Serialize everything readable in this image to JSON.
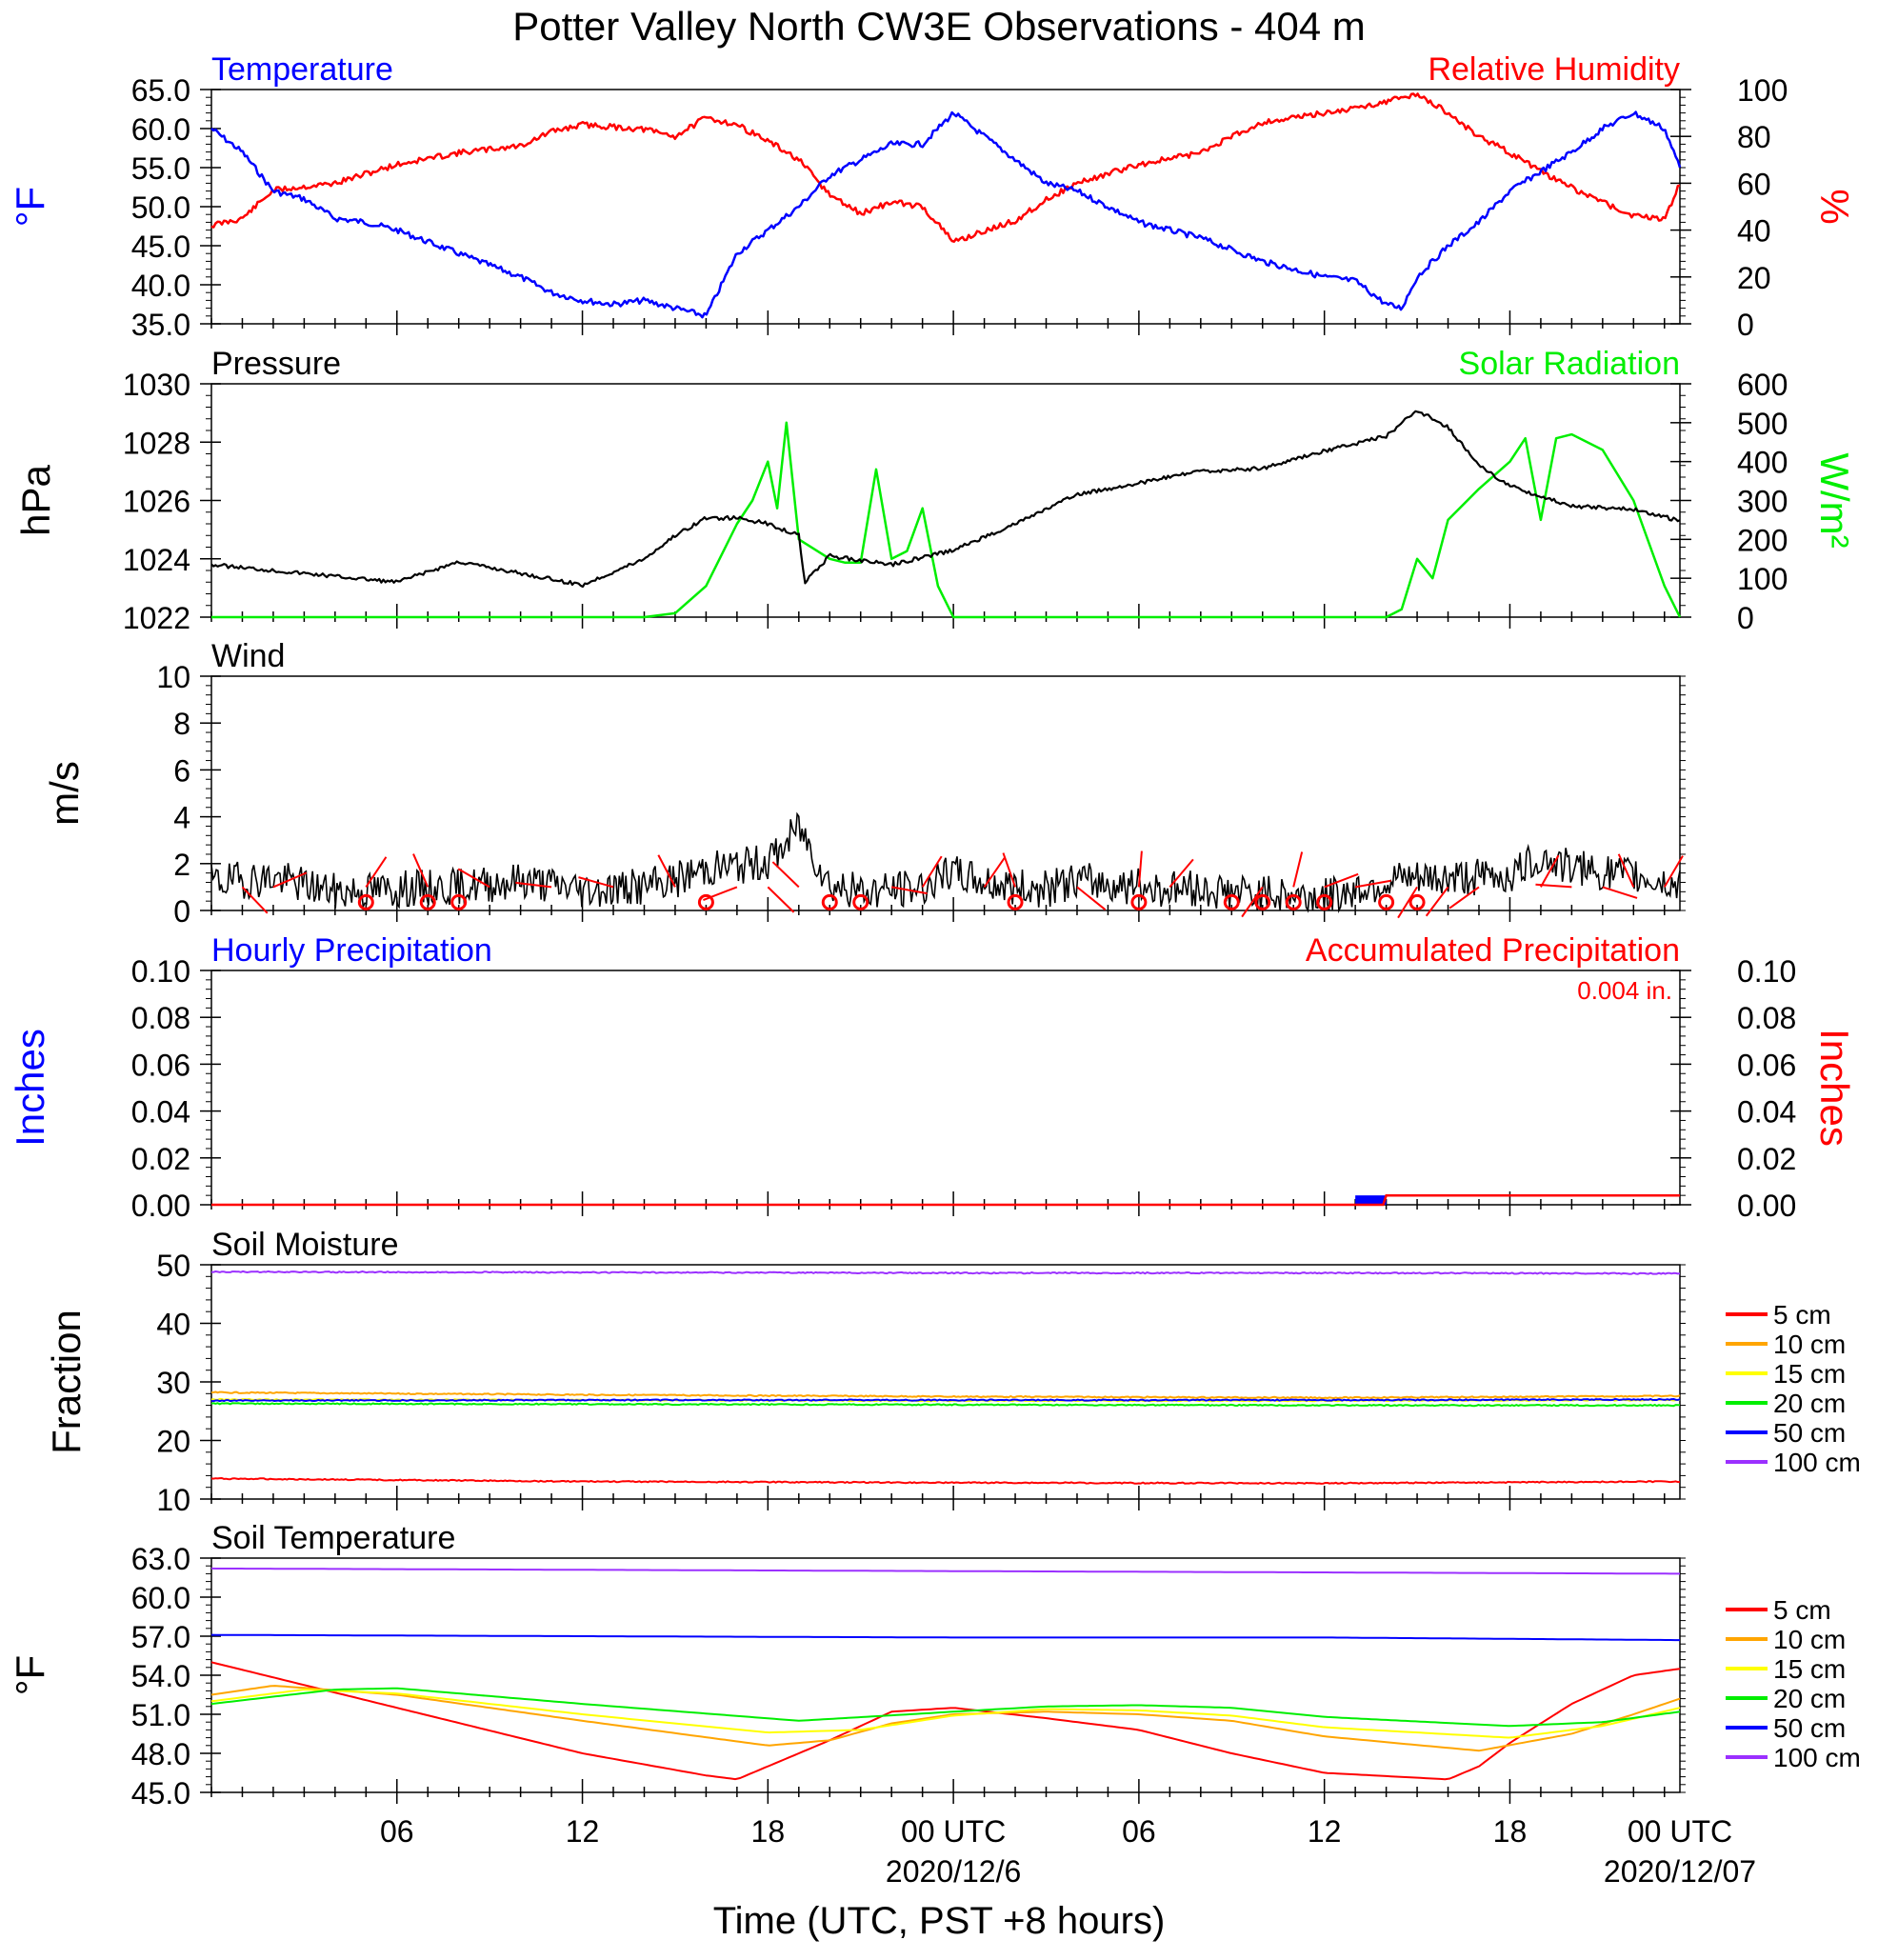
{
  "title": "Potter Valley North CW3E Observations - 404 m",
  "x_axis": {
    "title": "Time (UTC, PST +8 hours)",
    "tick_labels": [
      "06",
      "12",
      "18",
      "00 UTC",
      "06",
      "12",
      "18",
      "00 UTC"
    ],
    "date_labels": [
      "2020/12/6",
      "2020/12/07"
    ]
  },
  "chart_data": [
    {
      "type": "line",
      "panel": "temperature-humidity",
      "left_title": "Temperature",
      "right_title": "Relative Humidity",
      "left_axis_label": "°F",
      "right_axis_label": "%",
      "ylim_left": [
        35,
        65
      ],
      "ylim_right": [
        0,
        100
      ],
      "yticks_left": [
        "35.0",
        "40.0",
        "45.0",
        "50.0",
        "55.0",
        "60.0",
        "65.0"
      ],
      "yticks_right": [
        "0",
        "20",
        "40",
        "60",
        "80",
        "100"
      ],
      "series": [
        {
          "name": "Temperature",
          "axis": "left",
          "color": "#0000ff",
          "x": [
            0,
            1,
            2,
            3,
            4,
            5,
            6,
            8,
            10,
            11,
            12,
            13,
            14,
            15,
            16,
            16.5,
            17,
            18,
            19,
            20,
            21,
            22,
            23,
            24,
            25,
            26,
            27,
            28,
            30,
            32,
            34,
            36,
            37,
            38,
            38.5,
            39,
            40,
            41,
            42,
            44,
            45,
            46,
            47,
            47.5
          ],
          "values": [
            60,
            57,
            52,
            51,
            48.5,
            48,
            47,
            44,
            41,
            39,
            38,
            37.5,
            38,
            37,
            36,
            40,
            44,
            47,
            50,
            54,
            56,
            58,
            58,
            62,
            59,
            56,
            53,
            52,
            48,
            46,
            43,
            41,
            40.5,
            37.5,
            37,
            41,
            45,
            48,
            52,
            57,
            60,
            62,
            60,
            55
          ]
        },
        {
          "name": "Relative Humidity",
          "axis": "right",
          "color": "#ff0000",
          "x": [
            0,
            1,
            2,
            4,
            6,
            8,
            10,
            11,
            12,
            14,
            15,
            16,
            17,
            18,
            19,
            20,
            21,
            22,
            23,
            24,
            26,
            27,
            28,
            30,
            32,
            33,
            34,
            36,
            37,
            38,
            39,
            40,
            41,
            42,
            43,
            44,
            45,
            46,
            47,
            47.5
          ],
          "values": [
            42,
            45,
            57,
            60,
            68,
            73,
            76,
            82,
            85,
            83,
            80,
            88,
            85,
            78,
            70,
            55,
            47,
            52,
            50,
            35,
            44,
            53,
            60,
            68,
            73,
            80,
            86,
            90,
            92,
            95,
            98,
            90,
            80,
            73,
            65,
            58,
            52,
            46,
            45,
            60
          ]
        }
      ]
    },
    {
      "type": "line",
      "panel": "pressure-solar",
      "left_title": "Pressure",
      "right_title": "Solar Radiation",
      "left_axis_label": "hPa",
      "right_axis_label": "W/m²",
      "ylim_left": [
        1022,
        1030
      ],
      "ylim_right": [
        0,
        600
      ],
      "yticks_left": [
        "1022",
        "1024",
        "1026",
        "1028",
        "1030"
      ],
      "yticks_right": [
        "0",
        "100",
        "200",
        "300",
        "400",
        "500",
        "600"
      ],
      "series": [
        {
          "name": "Pressure",
          "axis": "left",
          "color": "#000000",
          "x": [
            0,
            2,
            4,
            6,
            8,
            10,
            12,
            14,
            15,
            16,
            17,
            18,
            19,
            19.2,
            20,
            22,
            24,
            26,
            28,
            30,
            32,
            34,
            36,
            38,
            39,
            40,
            41,
            42,
            44,
            46,
            47.5
          ],
          "values": [
            1023.8,
            1023.6,
            1023.4,
            1023.2,
            1023.9,
            1023.5,
            1023.1,
            1024,
            1024.8,
            1025.4,
            1025.4,
            1025.2,
            1024.8,
            1023.2,
            1024.1,
            1023.8,
            1024.3,
            1025.2,
            1026.2,
            1026.6,
            1027,
            1027.1,
            1027.7,
            1028.2,
            1029.1,
            1028.5,
            1027.2,
            1026.5,
            1025.8,
            1025.7,
            1025.3
          ]
        },
        {
          "name": "Solar Radiation",
          "axis": "right",
          "color": "#00ee00",
          "x": [
            0,
            14,
            15,
            16,
            17,
            17.5,
            18,
            18.3,
            18.6,
            19,
            20,
            20.5,
            21,
            21.5,
            22,
            22.5,
            23,
            23.5,
            24,
            38,
            38.5,
            39,
            39.5,
            40,
            41,
            42,
            42.5,
            43,
            43.5,
            44,
            45,
            46,
            47,
            47.5
          ],
          "values": [
            0,
            0,
            10,
            80,
            240,
            300,
            400,
            280,
            500,
            200,
            150,
            140,
            140,
            380,
            150,
            170,
            280,
            80,
            0,
            0,
            20,
            150,
            100,
            250,
            330,
            400,
            460,
            250,
            460,
            470,
            430,
            300,
            80,
            0
          ]
        }
      ]
    },
    {
      "type": "line",
      "panel": "wind",
      "left_title": "Wind",
      "left_axis_label": "m/s",
      "ylim": [
        0,
        10
      ],
      "yticks": [
        "0",
        "2",
        "4",
        "6",
        "8",
        "10"
      ],
      "series": [
        {
          "name": "Wind",
          "color": "#000000",
          "x": [
            0,
            2,
            4,
            6,
            8,
            10,
            12,
            14,
            15,
            16,
            17,
            18,
            18.5,
            19,
            20,
            21,
            22,
            23,
            24,
            25,
            26,
            27,
            28,
            30,
            32,
            34,
            36,
            37,
            38,
            40,
            42,
            43,
            44,
            46,
            47,
            47.5
          ],
          "values": [
            1.2,
            1.4,
            0.8,
            0.9,
            1.0,
            1.3,
            0.9,
            1.0,
            1.3,
            1.8,
            1.9,
            2.1,
            2.7,
            3.6,
            1.1,
            0.8,
            0.9,
            1.0,
            1.6,
            1.2,
            1.0,
            0.9,
            1.3,
            1.0,
            0.9,
            0.7,
            0.6,
            0.9,
            1.2,
            1.4,
            1.5,
            2.3,
            1.8,
            1.5,
            1.2,
            1.0
          ]
        }
      ],
      "calm_marker_hours": [
        5,
        7,
        8,
        16,
        20,
        21,
        26,
        30,
        33,
        34,
        35,
        36,
        38,
        39
      ],
      "barb_hours": [
        1,
        2,
        5,
        7,
        9,
        11,
        13,
        15,
        17,
        18,
        19,
        22,
        23,
        25,
        26,
        28,
        30,
        31,
        34,
        35,
        36,
        37,
        39,
        40,
        41,
        43,
        44,
        45,
        46,
        47
      ]
    },
    {
      "type": "bar",
      "panel": "precipitation",
      "left_title": "Hourly Precipitation",
      "right_title": "Accumulated Precipitation",
      "accumulated_total_label": "0.004 in.",
      "left_axis_label": "Inches",
      "right_axis_label": "Inches",
      "ylim": [
        0,
        0.1
      ],
      "yticks": [
        "0.00",
        "0.02",
        "0.04",
        "0.06",
        "0.08",
        "0.10"
      ],
      "series": [
        {
          "name": "Hourly Precipitation",
          "color": "#0000ff",
          "x": [
            37
          ],
          "values": [
            0.004
          ]
        },
        {
          "name": "Accumulated Precipitation",
          "color": "#ff0000",
          "x": [
            0,
            37.9,
            38,
            47.5
          ],
          "values": [
            0,
            0,
            0.004,
            0.004
          ]
        }
      ]
    },
    {
      "type": "line",
      "panel": "soil-moisture",
      "left_title": "Soil Moisture",
      "left_axis_label": "Fraction",
      "ylim": [
        10,
        50
      ],
      "yticks": [
        "10",
        "20",
        "30",
        "40",
        "50"
      ],
      "series": [
        {
          "name": "5 cm",
          "color": "#ff0000",
          "x": [
            0,
            12,
            24,
            36,
            47.5
          ],
          "values": [
            13.5,
            13.0,
            12.8,
            12.7,
            13.0
          ]
        },
        {
          "name": "10 cm",
          "color": "#ffa500",
          "x": [
            0,
            12,
            24,
            36,
            47.5
          ],
          "values": [
            28.2,
            27.8,
            27.5,
            27.3,
            27.6
          ]
        },
        {
          "name": "15 cm",
          "color": "#ffff00",
          "x": [
            0,
            12,
            24,
            36,
            47.5
          ],
          "values": [
            27.0,
            26.9,
            26.8,
            26.8,
            26.9
          ]
        },
        {
          "name": "20 cm",
          "color": "#00ee00",
          "x": [
            0,
            12,
            24,
            36,
            47.5
          ],
          "values": [
            26.3,
            26.2,
            26.1,
            26.0,
            26.0
          ]
        },
        {
          "name": "50 cm",
          "color": "#0000ff",
          "x": [
            0,
            12,
            24,
            36,
            47.5
          ],
          "values": [
            26.8,
            26.9,
            26.9,
            26.9,
            27.0
          ]
        },
        {
          "name": "100 cm",
          "color": "#9b30ff",
          "x": [
            0,
            12,
            24,
            36,
            47.5
          ],
          "values": [
            48.8,
            48.7,
            48.6,
            48.6,
            48.5
          ]
        }
      ]
    },
    {
      "type": "line",
      "panel": "soil-temperature",
      "left_title": "Soil Temperature",
      "left_axis_label": "°F",
      "ylim": [
        45,
        63
      ],
      "yticks": [
        "45.0",
        "48.0",
        "51.0",
        "54.0",
        "57.0",
        "60.0",
        "63.0"
      ],
      "series": [
        {
          "name": "5 cm",
          "color": "#ff0000",
          "x": [
            0,
            6,
            12,
            16,
            17,
            20,
            22,
            24,
            27,
            30,
            33,
            36,
            40,
            41,
            42,
            44,
            46,
            47.5
          ],
          "values": [
            55.0,
            51.5,
            48.0,
            46.3,
            46.0,
            49.0,
            51.2,
            51.5,
            50.7,
            49.8,
            48.0,
            46.5,
            46.0,
            47.0,
            48.8,
            51.8,
            54.0,
            54.5
          ]
        },
        {
          "name": "10 cm",
          "color": "#ffa500",
          "x": [
            0,
            2,
            6,
            12,
            18,
            20,
            22,
            24,
            27,
            30,
            33,
            36,
            41,
            44,
            46,
            47.5
          ],
          "values": [
            52.5,
            53.2,
            52.5,
            50.5,
            48.6,
            49.0,
            50.3,
            51.0,
            51.2,
            51.0,
            50.5,
            49.3,
            48.2,
            49.5,
            51.0,
            52.2
          ]
        },
        {
          "name": "15 cm",
          "color": "#ffff00",
          "x": [
            0,
            3,
            6,
            12,
            18,
            21,
            24,
            27,
            30,
            33,
            36,
            42,
            45,
            47.5
          ],
          "values": [
            52.0,
            52.9,
            52.6,
            51.0,
            49.6,
            49.8,
            50.9,
            51.4,
            51.3,
            50.9,
            50.0,
            49.2,
            50.1,
            51.5
          ]
        },
        {
          "name": "20 cm",
          "color": "#00ee00",
          "x": [
            0,
            4,
            6,
            12,
            19,
            24,
            27,
            30,
            33,
            36,
            42,
            45,
            47.5
          ],
          "values": [
            51.8,
            52.9,
            53.0,
            51.8,
            50.5,
            51.2,
            51.6,
            51.7,
            51.5,
            50.8,
            50.1,
            50.4,
            51.2
          ]
        },
        {
          "name": "50 cm",
          "color": "#0000ff",
          "x": [
            0,
            12,
            24,
            36,
            47.5
          ],
          "values": [
            57.1,
            57.0,
            56.9,
            56.9,
            56.7
          ]
        },
        {
          "name": "100 cm",
          "color": "#9b30ff",
          "x": [
            0,
            12,
            24,
            36,
            47.5
          ],
          "values": [
            62.2,
            62.1,
            62.0,
            61.9,
            61.8
          ]
        }
      ]
    }
  ]
}
